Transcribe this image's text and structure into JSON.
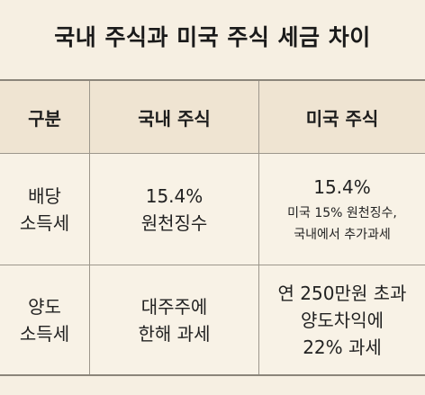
{
  "title": "국내 주식과 미국 주식 세금 차이",
  "table": {
    "headers": [
      "구분",
      "국내 주식",
      "미국 주식"
    ],
    "rows": [
      {
        "category": [
          "배당",
          "소득세"
        ],
        "domestic": [
          "15.4%",
          "원천징수"
        ],
        "us_main": "15.4%",
        "us_notes": [
          "미국 15% 원천징수,",
          "국내에서 추가과세"
        ]
      },
      {
        "category": [
          "양도",
          "소득세"
        ],
        "domestic": [
          "대주주에",
          "한해 과세"
        ],
        "us_lines": [
          "연 250만원 초과",
          "양도차익에",
          "22% 과세"
        ]
      }
    ]
  }
}
